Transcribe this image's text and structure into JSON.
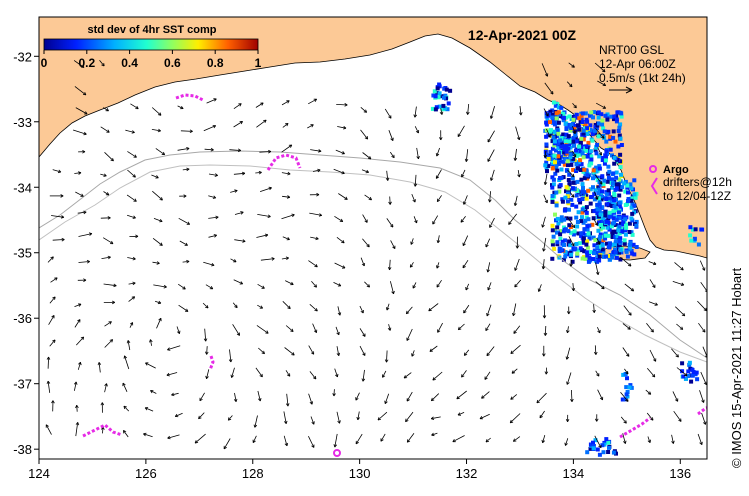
{
  "title": "12-Apr-2021 00Z",
  "colorbar": {
    "label": "std dev of 4hr SST comp",
    "ticks": [
      "0",
      "0.2",
      "0.4",
      "0.6",
      "0.8",
      "1"
    ],
    "range": [
      0,
      1
    ]
  },
  "current_info": {
    "line1": "NRT00 GSL",
    "line2": "12-Apr 06:00Z",
    "line3": "0.5m/s (1kt 24h)"
  },
  "argo": {
    "label": "Argo",
    "note1": "drifters@12h",
    "note2": "to 12/04-12Z"
  },
  "credit": "© IMOS 15-Apr-2021 11:27 Hobart",
  "axes": {
    "lon_ticks": [
      "124",
      "126",
      "128",
      "130",
      "132",
      "134",
      "136"
    ],
    "lat_ticks": [
      "-32",
      "-33",
      "-34",
      "-35",
      "-36",
      "-37",
      "-38"
    ],
    "lon_range": [
      124,
      136.5
    ],
    "lat_range": [
      -38.15,
      -31.4
    ]
  },
  "colors": {
    "land": "#fcc996",
    "argo": "#e62be6",
    "vector": "#000000",
    "isobath": "#a8a8a8"
  }
}
